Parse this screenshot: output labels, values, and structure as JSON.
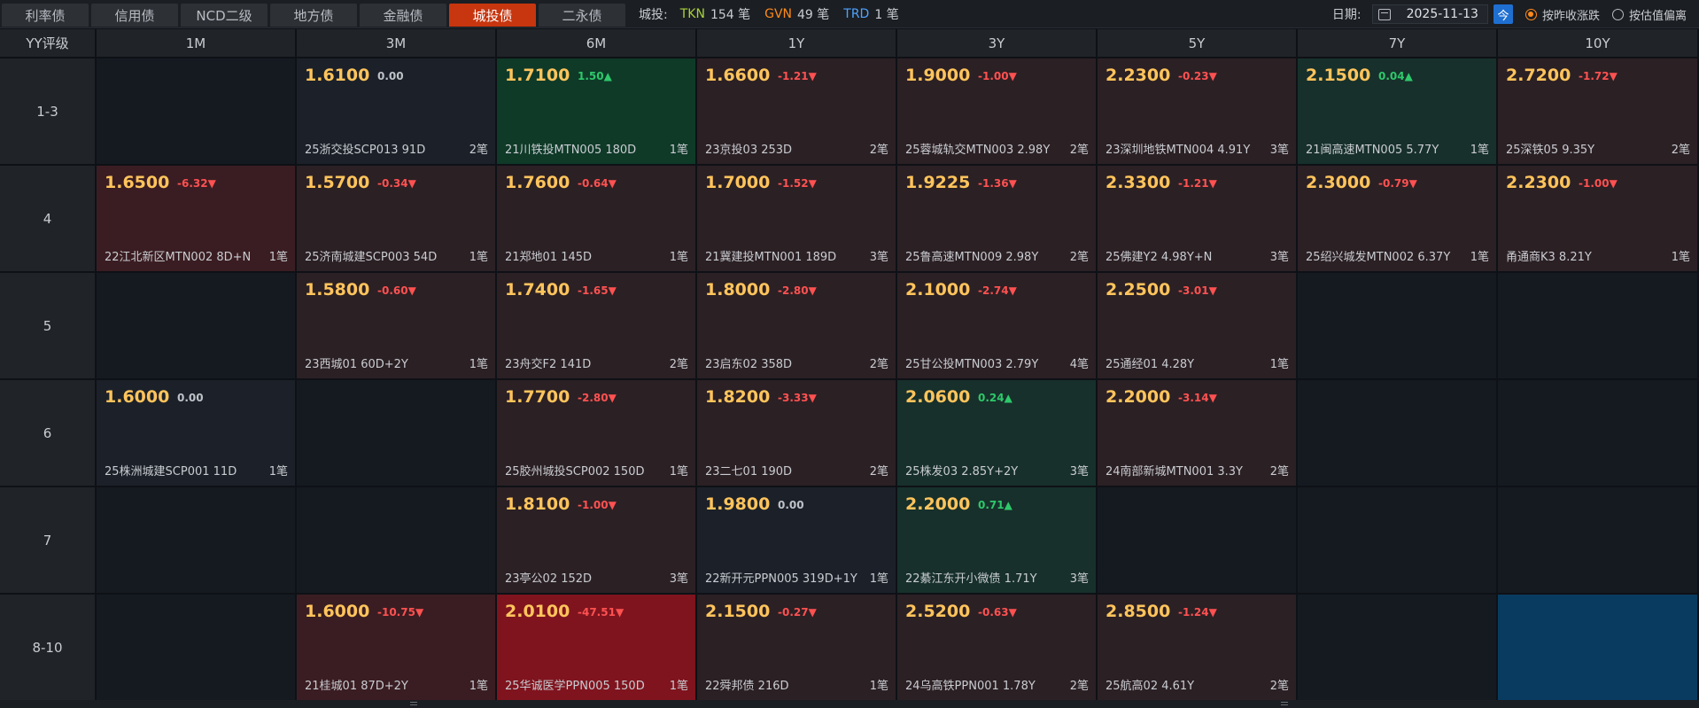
{
  "tabs": [
    {
      "label": "利率债",
      "active": false
    },
    {
      "label": "信用债",
      "active": false
    },
    {
      "label": "NCD二级",
      "active": false
    },
    {
      "label": "地方债",
      "active": false
    },
    {
      "label": "金融债",
      "active": false
    },
    {
      "label": "城投债",
      "active": true
    },
    {
      "label": "二永债",
      "active": false
    }
  ],
  "stats": {
    "label": "城投:",
    "tkn_key": "TKN",
    "tkn_val": "154 笔",
    "gvn_key": "GVN",
    "gvn_val": "49 笔",
    "trd_key": "TRD",
    "trd_val": "1 笔"
  },
  "controls": {
    "date_label": "日期:",
    "date_value": "2025-11-13",
    "today_label": "今",
    "radio1": "按昨收涨跌",
    "radio2": "按估值偏离"
  },
  "grid": {
    "corner": "YY评级",
    "columns": [
      "1M",
      "3M",
      "6M",
      "1Y",
      "3Y",
      "5Y",
      "7Y",
      "10Y"
    ],
    "rows": [
      {
        "label": "1-3",
        "cells": [
          null,
          {
            "price": "1.6100",
            "chg": "0.00",
            "dir": "flat",
            "bond": "25浙交投SCP013 91D",
            "count": "2笔",
            "bg": "c-neu"
          },
          {
            "price": "1.7100",
            "chg": "1.50▲",
            "dir": "up",
            "bond": "21川铁投MTN005 180D",
            "count": "1笔",
            "bg": "c-grn2"
          },
          {
            "price": "1.6600",
            "chg": "-1.21▼",
            "dir": "down",
            "bond": "23京投03 253D",
            "count": "2笔",
            "bg": "c-red1"
          },
          {
            "price": "1.9000",
            "chg": "-1.00▼",
            "dir": "down",
            "bond": "25蓉城轨交MTN003 2.98Y",
            "count": "2笔",
            "bg": "c-red1"
          },
          {
            "price": "2.2300",
            "chg": "-0.23▼",
            "dir": "down",
            "bond": "23深圳地铁MTN004 4.91Y",
            "count": "3笔",
            "bg": "c-red1"
          },
          {
            "price": "2.1500",
            "chg": "0.04▲",
            "dir": "up",
            "bond": "21闽高速MTN005 5.77Y",
            "count": "1笔",
            "bg": "c-grn1"
          },
          {
            "price": "2.7200",
            "chg": "-1.72▼",
            "dir": "down",
            "bond": "25深铁05 9.35Y",
            "count": "2笔",
            "bg": "c-red1"
          }
        ]
      },
      {
        "label": "4",
        "cells": [
          {
            "price": "1.6500",
            "chg": "-6.32▼",
            "dir": "down",
            "bond": "22江北新区MTN002 8D+N",
            "count": "1笔",
            "bg": "c-red2"
          },
          {
            "price": "1.5700",
            "chg": "-0.34▼",
            "dir": "down",
            "bond": "25济南城建SCP003 54D",
            "count": "1笔",
            "bg": "c-red1"
          },
          {
            "price": "1.7600",
            "chg": "-0.64▼",
            "dir": "down",
            "bond": "21郑地01 145D",
            "count": "1笔",
            "bg": "c-red1"
          },
          {
            "price": "1.7000",
            "chg": "-1.52▼",
            "dir": "down",
            "bond": "21冀建投MTN001 189D",
            "count": "3笔",
            "bg": "c-red1"
          },
          {
            "price": "1.9225",
            "chg": "-1.36▼",
            "dir": "down",
            "bond": "25鲁高速MTN009 2.98Y",
            "count": "2笔",
            "bg": "c-red1"
          },
          {
            "price": "2.3300",
            "chg": "-1.21▼",
            "dir": "down",
            "bond": "25佛建Y2 4.98Y+N",
            "count": "3笔",
            "bg": "c-red1"
          },
          {
            "price": "2.3000",
            "chg": "-0.79▼",
            "dir": "down",
            "bond": "25绍兴城发MTN002 6.37Y",
            "count": "1笔",
            "bg": "c-red1"
          },
          {
            "price": "2.2300",
            "chg": "-1.00▼",
            "dir": "down",
            "bond": "甬通商K3 8.21Y",
            "count": "1笔",
            "bg": "c-red1"
          }
        ]
      },
      {
        "label": "5",
        "cells": [
          null,
          {
            "price": "1.5800",
            "chg": "-0.60▼",
            "dir": "down",
            "bond": "23西城01 60D+2Y",
            "count": "1笔",
            "bg": "c-red1"
          },
          {
            "price": "1.7400",
            "chg": "-1.65▼",
            "dir": "down",
            "bond": "23舟交F2 141D",
            "count": "2笔",
            "bg": "c-red1"
          },
          {
            "price": "1.8000",
            "chg": "-2.80▼",
            "dir": "down",
            "bond": "23启东02 358D",
            "count": "2笔",
            "bg": "c-red1"
          },
          {
            "price": "2.1000",
            "chg": "-2.74▼",
            "dir": "down",
            "bond": "25甘公投MTN003 2.79Y",
            "count": "4笔",
            "bg": "c-red1"
          },
          {
            "price": "2.2500",
            "chg": "-3.01▼",
            "dir": "down",
            "bond": "25通经01 4.28Y",
            "count": "1笔",
            "bg": "c-red1"
          },
          null,
          null
        ]
      },
      {
        "label": "6",
        "cells": [
          {
            "price": "1.6000",
            "chg": "0.00",
            "dir": "flat",
            "bond": "25株洲城建SCP001 11D",
            "count": "1笔",
            "bg": "c-neu"
          },
          null,
          {
            "price": "1.7700",
            "chg": "-2.80▼",
            "dir": "down",
            "bond": "25胶州城投SCP002 150D",
            "count": "1笔",
            "bg": "c-red1"
          },
          {
            "price": "1.8200",
            "chg": "-3.33▼",
            "dir": "down",
            "bond": "23二七01 190D",
            "count": "2笔",
            "bg": "c-red1"
          },
          {
            "price": "2.0600",
            "chg": "0.24▲",
            "dir": "up",
            "bond": "25株发03 2.85Y+2Y",
            "count": "3笔",
            "bg": "c-grn1"
          },
          {
            "price": "2.2000",
            "chg": "-3.14▼",
            "dir": "down",
            "bond": "24南部新城MTN001 3.3Y",
            "count": "2笔",
            "bg": "c-red1"
          },
          null,
          null
        ]
      },
      {
        "label": "7",
        "cells": [
          null,
          null,
          {
            "price": "1.8100",
            "chg": "-1.00▼",
            "dir": "down",
            "bond": "23亭公02 152D",
            "count": "3笔",
            "bg": "c-red1"
          },
          {
            "price": "1.9800",
            "chg": "0.00",
            "dir": "flat",
            "bond": "22新开元PPN005 319D+1Y",
            "count": "1笔",
            "bg": "c-neu"
          },
          {
            "price": "2.2000",
            "chg": "0.71▲",
            "dir": "up",
            "bond": "22綦江东开小微债 1.71Y",
            "count": "3笔",
            "bg": "c-grn1"
          },
          null,
          null,
          null
        ]
      },
      {
        "label": "8-10",
        "cells": [
          null,
          {
            "price": "1.6000",
            "chg": "-10.75▼",
            "dir": "down",
            "bond": "21桂城01 87D+2Y",
            "count": "1笔",
            "bg": "c-red2"
          },
          {
            "price": "2.0100",
            "chg": "-47.51▼",
            "dir": "down",
            "bond": "25华诚医学PPN005 150D",
            "count": "1笔",
            "bg": "c-red3"
          },
          {
            "price": "2.1500",
            "chg": "-0.27▼",
            "dir": "down",
            "bond": "22舜邦债 216D",
            "count": "1笔",
            "bg": "c-red1"
          },
          {
            "price": "2.5200",
            "chg": "-0.63▼",
            "dir": "down",
            "bond": "24乌高铁PPN001 1.78Y",
            "count": "2笔",
            "bg": "c-red1"
          },
          {
            "price": "2.8500",
            "chg": "-1.24▼",
            "dir": "down",
            "bond": "25航高02 4.61Y",
            "count": "2笔",
            "bg": "c-red1"
          },
          null,
          {
            "empty_bg": "c-blue"
          }
        ]
      }
    ]
  }
}
